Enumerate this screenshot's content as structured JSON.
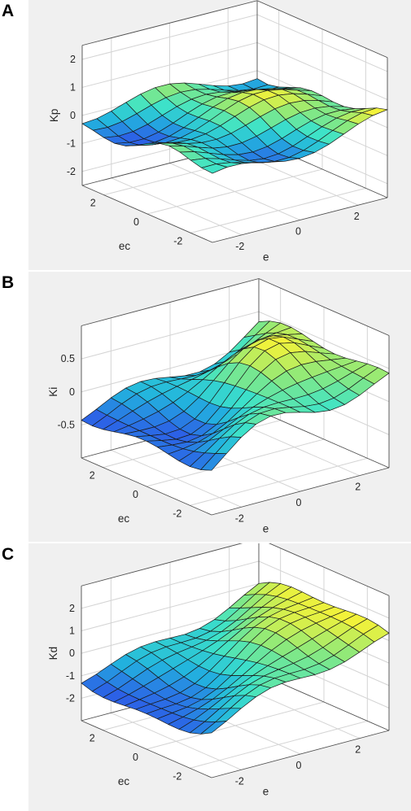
{
  "chart_data": [
    {
      "type": "surface",
      "panel_label": "A",
      "zlabel": "Kp",
      "xlabel": "e",
      "ylabel": "ec",
      "xlim": [
        -3,
        3
      ],
      "ylim": [
        -3,
        3
      ],
      "zlim": [
        -2.5,
        2.5
      ],
      "zticks": [
        "2",
        "1",
        "0",
        "-1",
        "-2"
      ],
      "xticks": [
        "-2",
        "0",
        "2"
      ],
      "yticks": [
        "2",
        "0",
        "-2"
      ],
      "grid": true,
      "colormap": [
        "#2c61e6",
        "#22b4de",
        "#3ee3c8",
        "#8ee97a",
        "#f2f23a"
      ],
      "surface_note": "low-amplitude wavy surface around 0"
    },
    {
      "type": "surface",
      "panel_label": "B",
      "zlabel": "Ki",
      "xlabel": "e",
      "ylabel": "ec",
      "xlim": [
        -3,
        3
      ],
      "ylim": [
        -3,
        3
      ],
      "zlim": [
        -1,
        1
      ],
      "zticks": [
        "0.5",
        "0",
        "-0.5"
      ],
      "xticks": [
        "-2",
        "0",
        "2"
      ],
      "yticks": [
        "2",
        "0",
        "-2"
      ],
      "grid": true,
      "colormap": [
        "#2c61e6",
        "#22b4de",
        "#3ee3c8",
        "#8ee97a",
        "#f2f23a"
      ],
      "surface_note": "saddle-like surface rising toward the far corner"
    },
    {
      "type": "surface",
      "panel_label": "C",
      "zlabel": "Kd",
      "xlabel": "e",
      "ylabel": "ec",
      "xlim": [
        -3,
        3
      ],
      "ylim": [
        -3,
        3
      ],
      "zlim": [
        -3,
        3
      ],
      "zticks": [
        "2",
        "1",
        "0",
        "-1",
        "-2"
      ],
      "xticks": [
        "-2",
        "0",
        "2"
      ],
      "yticks": [
        "2",
        "0",
        "-2"
      ],
      "grid": true,
      "colormap": [
        "#2c61e6",
        "#22b4de",
        "#3ee3c8",
        "#8ee97a",
        "#f2f23a"
      ],
      "surface_note": "surface sloping from low front corner to high back corner"
    }
  ]
}
